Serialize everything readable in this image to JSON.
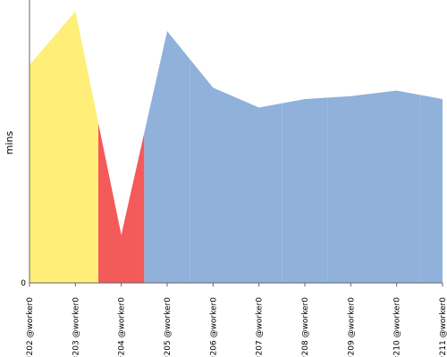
{
  "chart_data": {
    "type": "area",
    "title": "",
    "xlabel": "",
    "ylabel": "mins",
    "y_ticks": [
      "0"
    ],
    "ylim": [
      0,
      10
    ],
    "grid": false,
    "legend": "none",
    "categories": [
      "#202 @worker0",
      "#203 @worker0",
      "#204 @worker0",
      "#205 @worker0",
      "#206 @worker0",
      "#207 @worker0",
      "#208 @worker0",
      "#209 @worker0",
      "#210 @worker0",
      "#211 @worker0"
    ],
    "values": [
      7.7,
      9.6,
      1.7,
      8.9,
      6.9,
      6.2,
      6.5,
      6.6,
      6.8,
      6.5
    ],
    "point_status": [
      "unstable",
      "unstable",
      "failed",
      "success",
      "success",
      "success",
      "success",
      "success",
      "success",
      "success"
    ],
    "colors": {
      "unstable": "#ffee77",
      "failed": "#f45a5a",
      "success": "#8fb1da",
      "axis": "#666666"
    }
  }
}
